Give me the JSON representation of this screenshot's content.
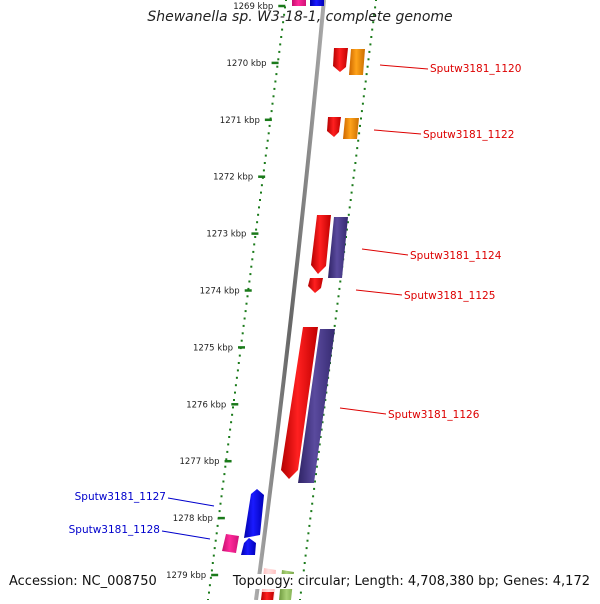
{
  "title": "Shewanella sp. W3-18-1, complete genome",
  "footer": {
    "accession": "Accession: NC_008750",
    "summary": "Topology: circular; Length: 4,708,380 bp; Genes: 4,172"
  },
  "ruler": {
    "labels": [
      "1269 kbp",
      "1270 kbp",
      "1271 kbp",
      "1272 kbp",
      "1273 kbp",
      "1274 kbp",
      "1275 kbp",
      "1276 kbp",
      "1277 kbp",
      "1278 kbp",
      "1279 kbp"
    ]
  },
  "genes": [
    {
      "id": "Sputw3181_1120",
      "strand": "forward",
      "color": "#dd0000"
    },
    {
      "id": "Sputw3181_1122",
      "strand": "forward",
      "color": "#dd0000"
    },
    {
      "id": "Sputw3181_1124",
      "strand": "forward",
      "color": "#dd0000"
    },
    {
      "id": "Sputw3181_1125",
      "strand": "forward",
      "color": "#dd0000"
    },
    {
      "id": "Sputw3181_1126",
      "strand": "forward",
      "color": "#dd0000"
    },
    {
      "id": "Sputw3181_1127",
      "strand": "reverse",
      "color": "#0000cc"
    },
    {
      "id": "Sputw3181_1128",
      "strand": "reverse",
      "color": "#0000cc"
    }
  ],
  "colors": {
    "forward_cds": "#ff0000",
    "reverse_cds": "#0000ff",
    "orange_feature": "#ff9900",
    "purple_feature": "#4d3d8f",
    "pink_feature": "#ff1493",
    "green_feature": "#8fbc5a",
    "ruler_green": "#1a7a1a",
    "backbone": "#888888"
  }
}
